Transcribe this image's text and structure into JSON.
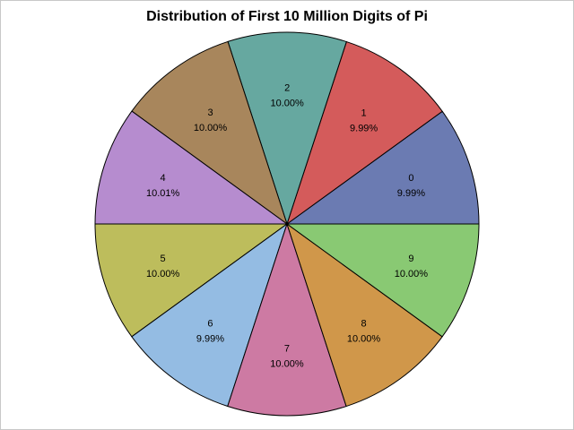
{
  "chart_data": {
    "type": "pie",
    "title": "Distribution of First 10 Million Digits of Pi",
    "slices": [
      {
        "label": "0",
        "percent_label": "9.99%",
        "value": 9.99,
        "color": "#6b7bb2"
      },
      {
        "label": "1",
        "percent_label": "9.99%",
        "value": 9.99,
        "color": "#d45b5b"
      },
      {
        "label": "2",
        "percent_label": "10.00%",
        "value": 10.0,
        "color": "#66a8a0"
      },
      {
        "label": "3",
        "percent_label": "10.00%",
        "value": 10.0,
        "color": "#a8865c"
      },
      {
        "label": "4",
        "percent_label": "10.01%",
        "value": 10.01,
        "color": "#b68ccf"
      },
      {
        "label": "5",
        "percent_label": "10.00%",
        "value": 10.0,
        "color": "#bdbd5c"
      },
      {
        "label": "6",
        "percent_label": "9.99%",
        "value": 9.99,
        "color": "#94bce3"
      },
      {
        "label": "7",
        "percent_label": "10.00%",
        "value": 10.0,
        "color": "#cd7aa3"
      },
      {
        "label": "8",
        "percent_label": "10.00%",
        "value": 10.0,
        "color": "#d0974a"
      },
      {
        "label": "9",
        "percent_label": "10.00%",
        "value": 10.0,
        "color": "#89c973"
      }
    ]
  }
}
